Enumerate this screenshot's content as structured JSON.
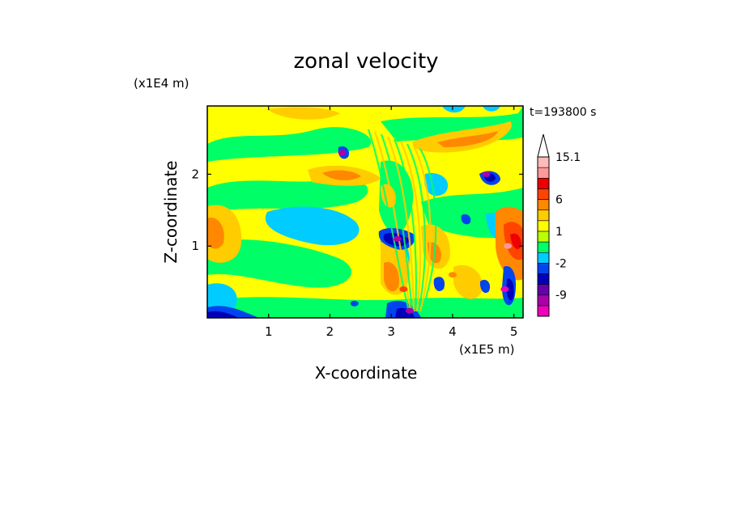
{
  "chart_data": {
    "type": "heatmap",
    "title": "zonal velocity",
    "xlabel": "X-coordinate",
    "ylabel": "Z-coordinate",
    "x_unit": "(x1E5 m)",
    "y_unit": "(x1E4 m)",
    "time_label": "t=193800 s",
    "xlim": [
      0,
      5.15
    ],
    "ylim": [
      0,
      2.95
    ],
    "x_ticks": [
      1,
      2,
      3,
      4,
      5
    ],
    "y_ticks": [
      1,
      2
    ],
    "colorbar": {
      "levels": [
        -15,
        -12,
        -9,
        -6,
        -3,
        -2,
        -1,
        0,
        1,
        2,
        3,
        6,
        9,
        12,
        15.1
      ],
      "colors": [
        "#ee00bb",
        "#aa00aa",
        "#6600aa",
        "#0000bb",
        "#0044ee",
        "#00ccff",
        "#00ff66",
        "#bbff00",
        "#ffff00",
        "#ffcc00",
        "#ff8800",
        "#ff4400",
        "#ee0000",
        "#ff9999",
        "#ffbbbb"
      ],
      "labels": [
        "15.1",
        "6",
        "1",
        "-2",
        "-9"
      ],
      "label_values": [
        15.1,
        6,
        1,
        -2,
        -9
      ]
    },
    "field_features": [
      {
        "x": 3.2,
        "z": 0.4,
        "u": 6
      },
      {
        "x": 2.3,
        "z": 2.0,
        "u": 5
      },
      {
        "x": 4.0,
        "z": 0.6,
        "u": 5
      },
      {
        "x": 4.9,
        "z": 1.0,
        "u": 12
      },
      {
        "x": 2.4,
        "z": 0.2,
        "u": -3
      },
      {
        "x": 2.2,
        "z": 2.3,
        "u": -12
      },
      {
        "x": 3.1,
        "z": 1.1,
        "u": -12
      },
      {
        "x": 3.3,
        "z": 0.1,
        "u": -12
      },
      {
        "x": 4.55,
        "z": 2.0,
        "u": -12
      },
      {
        "x": 4.85,
        "z": 0.4,
        "u": -15
      },
      {
        "x": 1.3,
        "z": 1.2,
        "u": -2
      }
    ]
  }
}
